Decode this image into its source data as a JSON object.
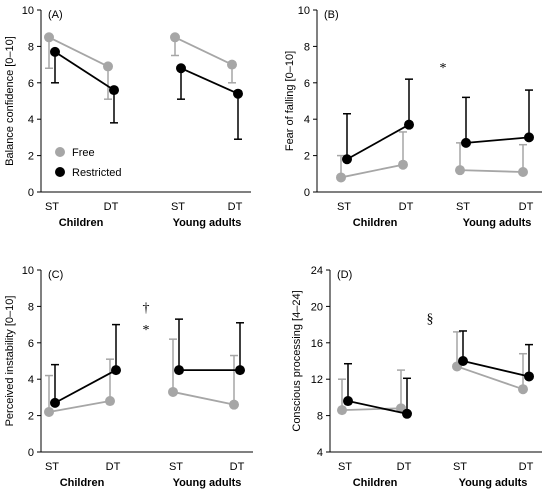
{
  "colors": {
    "free": "#a6a6a6",
    "restricted": "#000000"
  },
  "legend": [
    {
      "name": "Free",
      "color": "#a6a6a6"
    },
    {
      "name": "Restricted",
      "color": "#000000"
    }
  ],
  "chart_data": [
    {
      "type": "line",
      "panel": "(A)",
      "ylabel": "Balance confidence [0–10]",
      "ylim": [
        0,
        10
      ],
      "yticks": [
        0,
        2,
        4,
        6,
        8,
        10
      ],
      "categories": [
        "ST",
        "DT",
        "ST",
        "DT"
      ],
      "groups": [
        "Children",
        "Young adults"
      ],
      "series": [
        {
          "name": "Free",
          "values": [
            8.5,
            6.9,
            8.5,
            7.0
          ],
          "errors": [
            1.7,
            1.8,
            1.0,
            1.0
          ],
          "error_dir": "down"
        },
        {
          "name": "Restricted",
          "values": [
            7.7,
            5.6,
            6.8,
            5.4
          ],
          "errors": [
            1.7,
            1.8,
            1.7,
            2.5
          ],
          "error_dir": "down"
        }
      ],
      "annotations": []
    },
    {
      "type": "line",
      "panel": "(B)",
      "ylabel": "Fear of falling [0–10]",
      "ylim": [
        0,
        10
      ],
      "yticks": [
        0,
        2,
        4,
        6,
        8,
        10
      ],
      "categories": [
        "ST",
        "DT",
        "ST",
        "DT"
      ],
      "groups": [
        "Children",
        "Young adults"
      ],
      "series": [
        {
          "name": "Free",
          "values": [
            0.8,
            1.5,
            1.2,
            1.1
          ],
          "errors": [
            1.2,
            1.8,
            1.5,
            1.5
          ],
          "error_dir": "up"
        },
        {
          "name": "Restricted",
          "values": [
            1.8,
            3.7,
            2.7,
            3.0
          ],
          "errors": [
            2.5,
            2.5,
            2.5,
            2.6
          ],
          "error_dir": "up"
        }
      ],
      "annotations": [
        "*"
      ]
    },
    {
      "type": "line",
      "panel": "(C)",
      "ylabel": "Perceived instability [0–10]",
      "ylim": [
        0,
        10
      ],
      "yticks": [
        0,
        2,
        4,
        6,
        8,
        10
      ],
      "categories": [
        "ST",
        "DT",
        "ST",
        "DT"
      ],
      "groups": [
        "Children",
        "Young adults"
      ],
      "series": [
        {
          "name": "Free",
          "values": [
            2.2,
            2.8,
            3.3,
            2.6
          ],
          "errors": [
            2.0,
            2.3,
            2.9,
            2.7
          ],
          "error_dir": "up"
        },
        {
          "name": "Restricted",
          "values": [
            2.7,
            4.5,
            4.5,
            4.5
          ],
          "errors": [
            2.1,
            2.5,
            2.8,
            2.6
          ],
          "error_dir": "up"
        }
      ],
      "annotations": [
        "†",
        "*"
      ]
    },
    {
      "type": "line",
      "panel": "(D)",
      "ylabel": "Conscious processing [4–24]",
      "ylim": [
        4,
        24
      ],
      "yticks": [
        4,
        8,
        12,
        16,
        20,
        24
      ],
      "categories": [
        "ST",
        "DT",
        "ST",
        "DT"
      ],
      "groups": [
        "Children",
        "Young adults"
      ],
      "series": [
        {
          "name": "Free",
          "values": [
            8.6,
            8.8,
            13.4,
            10.9
          ],
          "errors": [
            3.4,
            4.2,
            3.8,
            3.9
          ],
          "error_dir": "up"
        },
        {
          "name": "Restricted",
          "values": [
            9.6,
            8.2,
            14.0,
            12.3
          ],
          "errors": [
            4.1,
            3.9,
            3.3,
            3.5
          ],
          "error_dir": "up"
        }
      ],
      "annotations": [
        "§"
      ]
    }
  ]
}
